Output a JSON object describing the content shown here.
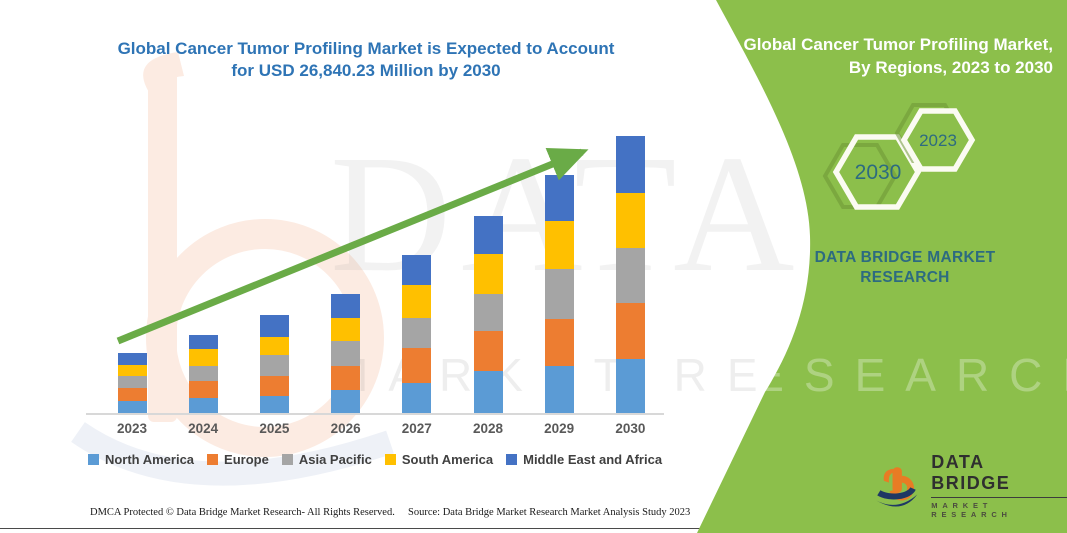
{
  "main": {
    "title_line1": "Global Cancer Tumor Profiling Market is Expected to Account",
    "title_line2": "for USD 26,840.23 Million by 2030"
  },
  "side_panel": {
    "title_line1": "Global Cancer Tumor Profiling Market,",
    "title_line2": "By Regions, 2023 to 2030",
    "hexagon_back_label": "2030",
    "hexagon_front_label": "2023",
    "brand_line1": "DATA BRIDGE MARKET",
    "brand_line2": "RESEARCH",
    "panel_color": "#8cbf4b",
    "text_color": "#2d6b80"
  },
  "logo": {
    "name": "DATA BRIDGE",
    "subtitle": "MARKET RESEARCH",
    "icon": "dbmr-b-logo-icon",
    "orange": "#e87c24",
    "navy": "#1f3864"
  },
  "footer": {
    "left": "DMCA Protected © Data Bridge Market Research-  All Rights Reserved.",
    "source": "Source: Data Bridge Market Research  Market Analysis Study 2023"
  },
  "icons": {
    "trend_arrow": "trend-arrow-icon",
    "watermark_logo": "dbmr-watermark-b-icon"
  },
  "chart_data": {
    "type": "bar",
    "stacked": true,
    "unit": "USD Million",
    "labeled_value": "USD 26,840.23 Million by 2030",
    "values_estimated_from_bar_heights": true,
    "categories": [
      "2023",
      "2024",
      "2025",
      "2026",
      "2027",
      "2028",
      "2029",
      "2030"
    ],
    "series": [
      {
        "name": "North America",
        "color": "#5b9bd5",
        "values": [
          1163,
          1454,
          1647,
          2229,
          2907,
          4070,
          4554,
          5233
        ]
      },
      {
        "name": "Europe",
        "color": "#ed7d31",
        "values": [
          1260,
          1647,
          1938,
          2326,
          3392,
          3876,
          4554,
          5426
        ]
      },
      {
        "name": "Asia Pacific",
        "color": "#a5a5a5",
        "values": [
          1163,
          1454,
          2035,
          2423,
          2907,
          3585,
          4845,
          5330
        ]
      },
      {
        "name": "South America",
        "color": "#ffc000",
        "values": [
          1066,
          1647,
          1744,
          2229,
          3198,
          3876,
          4651,
          5330
        ]
      },
      {
        "name": "Middle East and Africa",
        "color": "#4472c4",
        "values": [
          1163,
          1357,
          2132,
          2326,
          2907,
          3682,
          4458,
          5523
        ]
      }
    ],
    "estimated_totals": [
      5815,
      7559,
      9496,
      11533,
      15311,
      19089,
      23062,
      26842
    ],
    "trend_arrow": true,
    "arrow_color": "#6aab47",
    "legend_position": "bottom",
    "x_axis_labels_color": "#595959"
  }
}
